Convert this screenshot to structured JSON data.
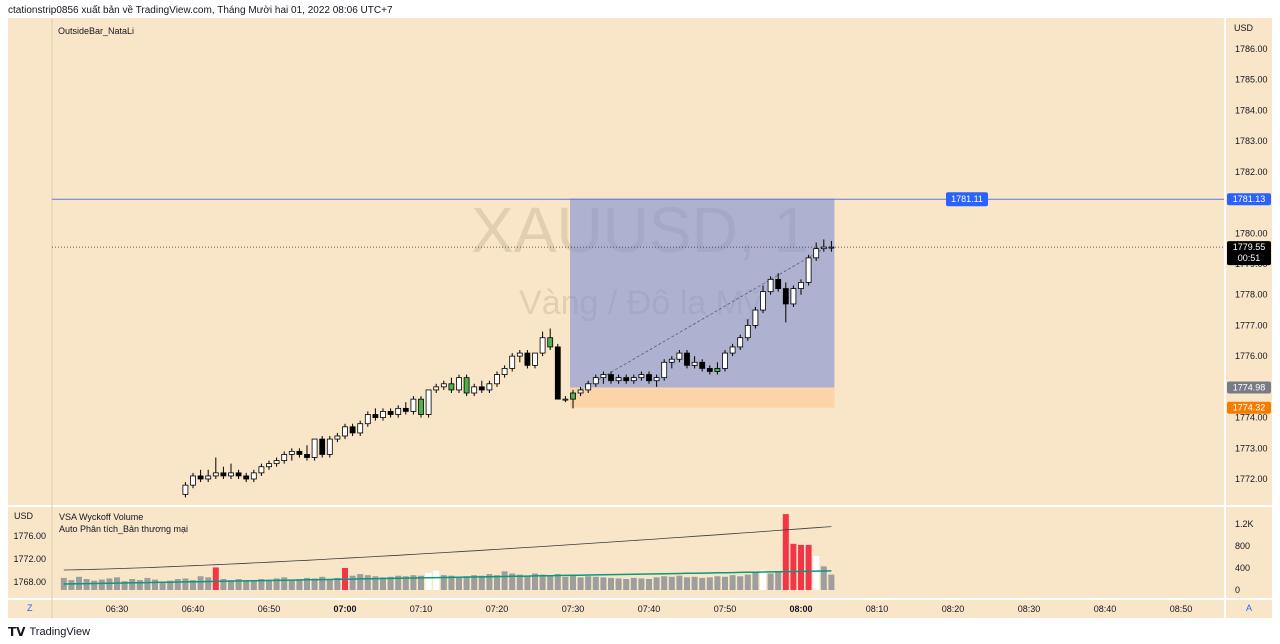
{
  "header": {
    "text": "ctationstrip0856 xuất bản về TradingView.com, Tháng Mười hai 01, 2022 08:06 UTC+7"
  },
  "main": {
    "indicator_label": "OutsideBar_NataLi",
    "currency": "USD",
    "watermark_symbol": "XAUUSD, 1",
    "watermark_desc": "Vàng / Đô la Mỹ",
    "price_ticks": [
      "1786.00",
      "1785.00",
      "1784.00",
      "1783.00",
      "1782.00",
      "1780.00",
      "1779.00",
      "1778.00",
      "1777.00",
      "1776.00",
      "1774.00",
      "1773.00",
      "1772.00"
    ],
    "badges": {
      "line_label": "1781.11",
      "axis_blue": "1781.13",
      "current_price": "1779.55",
      "countdown": "00:51",
      "axis_gray": "1774.98",
      "axis_orange": "1774.32"
    }
  },
  "volume_pane": {
    "currency": "USD",
    "title": "VSA Wyckoff Volume",
    "subtitle": "Auto Phân tích_Bản thương mại",
    "left_ticks": [
      "1776.00",
      "1772.00",
      "1768.00"
    ],
    "right_ticks": [
      "1.2K",
      "800",
      "400",
      "0"
    ]
  },
  "time_axis": {
    "labels": [
      "06:30",
      "06:40",
      "06:50",
      "07:00",
      "07:10",
      "07:20",
      "07:30",
      "07:40",
      "07:50",
      "08:00",
      "08:10",
      "08:20",
      "08:30",
      "08:40",
      "08:50"
    ],
    "bold_labels": [
      "07:00",
      "08:00"
    ],
    "left_button": "Z",
    "right_button": "A"
  },
  "footer": {
    "brand": "TradingView"
  },
  "colors": {
    "background": "#f9e6c8",
    "bull_candle": "#ffffff",
    "bear_candle": "#000000",
    "highlight_candle": "#4caf50",
    "line_blue": "#2962ff",
    "box_blue": "#7c8fd6",
    "box_orange": "#fdd3a8",
    "volume_red": "#f23645",
    "volume_gray": "#9e9e9e",
    "ma_green": "#089981"
  },
  "chart_data": {
    "type": "candlestick",
    "y_range": [
      1771.5,
      1786.4
    ],
    "time_range": [
      "06:23",
      "08:55"
    ],
    "candles": [
      {
        "t": "06:39",
        "o": 1771.5,
        "h": 1771.9,
        "l": 1771.4,
        "c": 1771.8
      },
      {
        "t": "06:40",
        "o": 1771.8,
        "h": 1772.2,
        "l": 1771.7,
        "c": 1772.1
      },
      {
        "t": "06:41",
        "o": 1772.1,
        "h": 1772.3,
        "l": 1771.9,
        "c": 1772.0
      },
      {
        "t": "06:42",
        "o": 1772.0,
        "h": 1772.3,
        "l": 1771.9,
        "c": 1772.1
      },
      {
        "t": "06:43",
        "o": 1772.1,
        "h": 1772.7,
        "l": 1772.0,
        "c": 1772.2
      },
      {
        "t": "06:44",
        "o": 1772.2,
        "h": 1772.4,
        "l": 1772.0,
        "c": 1772.1
      },
      {
        "t": "06:45",
        "o": 1772.1,
        "h": 1772.5,
        "l": 1772.0,
        "c": 1772.2
      },
      {
        "t": "06:46",
        "o": 1772.2,
        "h": 1772.3,
        "l": 1772.0,
        "c": 1772.1
      },
      {
        "t": "06:47",
        "o": 1772.1,
        "h": 1772.2,
        "l": 1771.9,
        "c": 1772.0
      },
      {
        "t": "06:48",
        "o": 1772.0,
        "h": 1772.3,
        "l": 1771.9,
        "c": 1772.2
      },
      {
        "t": "06:49",
        "o": 1772.2,
        "h": 1772.5,
        "l": 1772.1,
        "c": 1772.4
      },
      {
        "t": "06:50",
        "o": 1772.4,
        "h": 1772.6,
        "l": 1772.3,
        "c": 1772.5
      },
      {
        "t": "06:51",
        "o": 1772.5,
        "h": 1772.7,
        "l": 1772.4,
        "c": 1772.6
      },
      {
        "t": "06:52",
        "o": 1772.6,
        "h": 1772.9,
        "l": 1772.5,
        "c": 1772.8
      },
      {
        "t": "06:53",
        "o": 1772.8,
        "h": 1773.0,
        "l": 1772.6,
        "c": 1772.9
      },
      {
        "t": "06:54",
        "o": 1772.9,
        "h": 1773.0,
        "l": 1772.7,
        "c": 1772.8
      },
      {
        "t": "06:55",
        "o": 1772.8,
        "h": 1773.1,
        "l": 1772.6,
        "c": 1772.7
      },
      {
        "t": "06:56",
        "o": 1772.7,
        "h": 1773.3,
        "l": 1772.6,
        "c": 1773.3
      },
      {
        "t": "06:57",
        "o": 1773.3,
        "h": 1773.4,
        "l": 1772.7,
        "c": 1772.8
      },
      {
        "t": "06:58",
        "o": 1772.8,
        "h": 1773.4,
        "l": 1772.7,
        "c": 1773.3
      },
      {
        "t": "06:59",
        "o": 1773.3,
        "h": 1773.5,
        "l": 1773.2,
        "c": 1773.4
      },
      {
        "t": "07:00",
        "o": 1773.4,
        "h": 1773.8,
        "l": 1773.3,
        "c": 1773.7
      },
      {
        "t": "07:01",
        "o": 1773.7,
        "h": 1773.8,
        "l": 1773.4,
        "c": 1773.5
      },
      {
        "t": "07:02",
        "o": 1773.5,
        "h": 1773.9,
        "l": 1773.4,
        "c": 1773.8
      },
      {
        "t": "07:03",
        "o": 1773.8,
        "h": 1774.2,
        "l": 1773.7,
        "c": 1774.1
      },
      {
        "t": "07:04",
        "o": 1774.1,
        "h": 1774.3,
        "l": 1773.9,
        "c": 1774.0
      },
      {
        "t": "07:05",
        "o": 1774.0,
        "h": 1774.3,
        "l": 1773.9,
        "c": 1774.2
      },
      {
        "t": "07:06",
        "o": 1774.2,
        "h": 1774.3,
        "l": 1774.0,
        "c": 1774.1
      },
      {
        "t": "07:07",
        "o": 1774.1,
        "h": 1774.4,
        "l": 1774.0,
        "c": 1774.3
      },
      {
        "t": "07:08",
        "o": 1774.3,
        "h": 1774.5,
        "l": 1774.1,
        "c": 1774.2
      },
      {
        "t": "07:09",
        "o": 1774.2,
        "h": 1774.7,
        "l": 1774.1,
        "c": 1774.6
      },
      {
        "t": "07:10",
        "o": 1774.6,
        "h": 1774.7,
        "l": 1774.0,
        "c": 1774.1
      },
      {
        "t": "07:11",
        "o": 1774.1,
        "h": 1774.9,
        "l": 1774.0,
        "c": 1774.9
      },
      {
        "t": "07:12",
        "o": 1774.9,
        "h": 1775.1,
        "l": 1774.8,
        "c": 1775.0
      },
      {
        "t": "07:13",
        "o": 1775.0,
        "h": 1775.2,
        "l": 1774.9,
        "c": 1775.1
      },
      {
        "t": "07:14",
        "o": 1775.1,
        "h": 1775.3,
        "l": 1774.8,
        "c": 1774.9
      },
      {
        "t": "07:15",
        "o": 1774.9,
        "h": 1775.4,
        "l": 1774.8,
        "c": 1775.3
      },
      {
        "t": "07:16",
        "o": 1775.3,
        "h": 1775.4,
        "l": 1774.7,
        "c": 1774.8
      },
      {
        "t": "07:17",
        "o": 1774.8,
        "h": 1775.1,
        "l": 1774.7,
        "c": 1775.0
      },
      {
        "t": "07:18",
        "o": 1775.0,
        "h": 1775.2,
        "l": 1774.8,
        "c": 1774.9
      },
      {
        "t": "07:19",
        "o": 1774.9,
        "h": 1775.2,
        "l": 1774.8,
        "c": 1775.1
      },
      {
        "t": "07:20",
        "o": 1775.1,
        "h": 1775.5,
        "l": 1775.0,
        "c": 1775.4
      },
      {
        "t": "07:21",
        "o": 1775.4,
        "h": 1775.7,
        "l": 1775.3,
        "c": 1775.6
      },
      {
        "t": "07:22",
        "o": 1775.6,
        "h": 1776.1,
        "l": 1775.5,
        "c": 1776.0
      },
      {
        "t": "07:23",
        "o": 1776.0,
        "h": 1776.2,
        "l": 1775.8,
        "c": 1776.1
      },
      {
        "t": "07:24",
        "o": 1776.1,
        "h": 1776.2,
        "l": 1775.6,
        "c": 1775.7
      },
      {
        "t": "07:25",
        "o": 1775.7,
        "h": 1776.1,
        "l": 1775.6,
        "c": 1776.1
      },
      {
        "t": "07:26",
        "o": 1776.1,
        "h": 1776.8,
        "l": 1776.0,
        "c": 1776.6
      },
      {
        "t": "07:27",
        "o": 1776.6,
        "h": 1776.9,
        "l": 1776.2,
        "c": 1776.3
      },
      {
        "t": "07:28",
        "o": 1776.3,
        "h": 1776.4,
        "l": 1774.6,
        "c": 1774.6
      },
      {
        "t": "07:29",
        "o": 1774.6,
        "h": 1774.7,
        "l": 1774.5,
        "c": 1774.6
      },
      {
        "t": "07:30",
        "o": 1774.6,
        "h": 1774.9,
        "l": 1774.3,
        "c": 1774.8
      },
      {
        "t": "07:31",
        "o": 1774.8,
        "h": 1775.0,
        "l": 1774.7,
        "c": 1774.9
      },
      {
        "t": "07:32",
        "o": 1774.9,
        "h": 1775.2,
        "l": 1774.8,
        "c": 1775.1
      },
      {
        "t": "07:33",
        "o": 1775.1,
        "h": 1775.4,
        "l": 1775.0,
        "c": 1775.3
      },
      {
        "t": "07:34",
        "o": 1775.3,
        "h": 1775.5,
        "l": 1775.1,
        "c": 1775.4
      },
      {
        "t": "07:35",
        "o": 1775.4,
        "h": 1775.5,
        "l": 1775.1,
        "c": 1775.2
      },
      {
        "t": "07:36",
        "o": 1775.2,
        "h": 1775.4,
        "l": 1775.1,
        "c": 1775.3
      },
      {
        "t": "07:37",
        "o": 1775.3,
        "h": 1775.4,
        "l": 1775.1,
        "c": 1775.2
      },
      {
        "t": "07:38",
        "o": 1775.2,
        "h": 1775.4,
        "l": 1775.1,
        "c": 1775.3
      },
      {
        "t": "07:39",
        "o": 1775.3,
        "h": 1775.5,
        "l": 1775.2,
        "c": 1775.4
      },
      {
        "t": "07:40",
        "o": 1775.4,
        "h": 1775.5,
        "l": 1775.1,
        "c": 1775.2
      },
      {
        "t": "07:41",
        "o": 1775.2,
        "h": 1775.4,
        "l": 1775.0,
        "c": 1775.3
      },
      {
        "t": "07:42",
        "o": 1775.3,
        "h": 1775.9,
        "l": 1775.2,
        "c": 1775.8
      },
      {
        "t": "07:43",
        "o": 1775.8,
        "h": 1776.0,
        "l": 1775.6,
        "c": 1775.9
      },
      {
        "t": "07:44",
        "o": 1775.9,
        "h": 1776.2,
        "l": 1775.8,
        "c": 1776.1
      },
      {
        "t": "07:45",
        "o": 1776.1,
        "h": 1776.2,
        "l": 1775.6,
        "c": 1775.7
      },
      {
        "t": "07:46",
        "o": 1775.7,
        "h": 1776.0,
        "l": 1775.6,
        "c": 1775.8
      },
      {
        "t": "07:47",
        "o": 1775.8,
        "h": 1775.9,
        "l": 1775.5,
        "c": 1775.6
      },
      {
        "t": "07:48",
        "o": 1775.6,
        "h": 1775.7,
        "l": 1775.4,
        "c": 1775.5
      },
      {
        "t": "07:49",
        "o": 1775.5,
        "h": 1775.8,
        "l": 1775.4,
        "c": 1775.6
      },
      {
        "t": "07:50",
        "o": 1775.6,
        "h": 1776.2,
        "l": 1775.5,
        "c": 1776.1
      },
      {
        "t": "07:51",
        "o": 1776.1,
        "h": 1776.4,
        "l": 1776.0,
        "c": 1776.3
      },
      {
        "t": "07:52",
        "o": 1776.3,
        "h": 1776.7,
        "l": 1776.2,
        "c": 1776.6
      },
      {
        "t": "07:53",
        "o": 1776.6,
        "h": 1777.2,
        "l": 1776.5,
        "c": 1777.0
      },
      {
        "t": "07:54",
        "o": 1777.0,
        "h": 1777.6,
        "l": 1776.9,
        "c": 1777.5
      },
      {
        "t": "07:55",
        "o": 1777.5,
        "h": 1778.3,
        "l": 1777.4,
        "c": 1778.1
      },
      {
        "t": "07:56",
        "o": 1778.1,
        "h": 1778.6,
        "l": 1778.0,
        "c": 1778.5
      },
      {
        "t": "07:57",
        "o": 1778.5,
        "h": 1778.7,
        "l": 1778.1,
        "c": 1778.2
      },
      {
        "t": "07:58",
        "o": 1778.2,
        "h": 1778.4,
        "l": 1777.1,
        "c": 1777.7
      },
      {
        "t": "07:59",
        "o": 1777.7,
        "h": 1778.3,
        "l": 1777.6,
        "c": 1778.2
      },
      {
        "t": "08:00",
        "o": 1778.2,
        "h": 1778.5,
        "l": 1778.0,
        "c": 1778.4
      },
      {
        "t": "08:01",
        "o": 1778.4,
        "h": 1779.3,
        "l": 1778.3,
        "c": 1779.2
      },
      {
        "t": "08:02",
        "o": 1779.2,
        "h": 1779.7,
        "l": 1779.1,
        "c": 1779.5
      },
      {
        "t": "08:03",
        "o": 1779.5,
        "h": 1779.8,
        "l": 1779.4,
        "c": 1779.55
      },
      {
        "t": "08:04",
        "o": 1779.55,
        "h": 1779.75,
        "l": 1779.4,
        "c": 1779.55
      }
    ],
    "horizontal_line": 1781.11,
    "current_price": 1779.55,
    "box_upper": {
      "from": "07:30",
      "to": "08:04",
      "top": 1781.13,
      "bottom": 1774.98
    },
    "box_lower": {
      "from": "07:30",
      "to": "08:04",
      "top": 1774.98,
      "bottom": 1774.32
    },
    "volume_range": [
      0,
      1500
    ],
    "volume": [
      {
        "t": "06:23",
        "v": 220
      },
      {
        "t": "06:24",
        "v": 180
      },
      {
        "t": "06:25",
        "v": 240
      },
      {
        "t": "06:26",
        "v": 200
      },
      {
        "t": "06:27",
        "v": 170
      },
      {
        "t": "06:28",
        "v": 190
      },
      {
        "t": "06:29",
        "v": 210
      },
      {
        "t": "06:30",
        "v": 230
      },
      {
        "t": "06:31",
        "v": 160
      },
      {
        "t": "06:32",
        "v": 200
      },
      {
        "t": "06:33",
        "v": 180
      },
      {
        "t": "06:34",
        "v": 220
      },
      {
        "t": "06:35",
        "v": 190
      },
      {
        "t": "06:36",
        "v": 150
      },
      {
        "t": "06:37",
        "v": 170
      },
      {
        "t": "06:38",
        "v": 200
      },
      {
        "t": "06:39",
        "v": 210
      },
      {
        "t": "06:40",
        "v": 180
      },
      {
        "t": "06:41",
        "v": 250
      },
      {
        "t": "06:42",
        "v": 230
      },
      {
        "t": "06:43",
        "v": 410
      },
      {
        "t": "06:44",
        "v": 200
      },
      {
        "t": "06:45",
        "v": 180
      },
      {
        "t": "06:46",
        "v": 200
      },
      {
        "t": "06:47",
        "v": 180
      },
      {
        "t": "06:48",
        "v": 170
      },
      {
        "t": "06:49",
        "v": 200
      },
      {
        "t": "06:50",
        "v": 190
      },
      {
        "t": "06:51",
        "v": 210
      },
      {
        "t": "06:52",
        "v": 230
      },
      {
        "t": "06:53",
        "v": 190
      },
      {
        "t": "06:54",
        "v": 200
      },
      {
        "t": "06:55",
        "v": 220
      },
      {
        "t": "06:56",
        "v": 210
      },
      {
        "t": "06:57",
        "v": 240
      },
      {
        "t": "06:58",
        "v": 200
      },
      {
        "t": "06:59",
        "v": 220
      },
      {
        "t": "07:00",
        "v": 400
      },
      {
        "t": "07:01",
        "v": 260
      },
      {
        "t": "07:02",
        "v": 290
      },
      {
        "t": "07:03",
        "v": 270
      },
      {
        "t": "07:04",
        "v": 250
      },
      {
        "t": "07:05",
        "v": 230
      },
      {
        "t": "07:06",
        "v": 240
      },
      {
        "t": "07:07",
        "v": 260
      },
      {
        "t": "07:08",
        "v": 250
      },
      {
        "t": "07:09",
        "v": 270
      },
      {
        "t": "07:10",
        "v": 260
      },
      {
        "t": "07:11",
        "v": 310
      },
      {
        "t": "07:12",
        "v": 350
      },
      {
        "t": "07:13",
        "v": 270
      },
      {
        "t": "07:14",
        "v": 260
      },
      {
        "t": "07:15",
        "v": 240
      },
      {
        "t": "07:16",
        "v": 250
      },
      {
        "t": "07:17",
        "v": 270
      },
      {
        "t": "07:18",
        "v": 260
      },
      {
        "t": "07:19",
        "v": 290
      },
      {
        "t": "07:20",
        "v": 270
      },
      {
        "t": "07:21",
        "v": 340
      },
      {
        "t": "07:22",
        "v": 300
      },
      {
        "t": "07:23",
        "v": 280
      },
      {
        "t": "07:24",
        "v": 250
      },
      {
        "t": "07:25",
        "v": 300
      },
      {
        "t": "07:26",
        "v": 280
      },
      {
        "t": "07:27",
        "v": 260
      },
      {
        "t": "07:28",
        "v": 290
      },
      {
        "t": "07:29",
        "v": 240
      },
      {
        "t": "07:30",
        "v": 260
      },
      {
        "t": "07:31",
        "v": 230
      },
      {
        "t": "07:32",
        "v": 250
      },
      {
        "t": "07:33",
        "v": 240
      },
      {
        "t": "07:34",
        "v": 230
      },
      {
        "t": "07:35",
        "v": 220
      },
      {
        "t": "07:36",
        "v": 210
      },
      {
        "t": "07:37",
        "v": 200
      },
      {
        "t": "07:38",
        "v": 220
      },
      {
        "t": "07:39",
        "v": 210
      },
      {
        "t": "07:40",
        "v": 200
      },
      {
        "t": "07:41",
        "v": 230
      },
      {
        "t": "07:42",
        "v": 250
      },
      {
        "t": "07:43",
        "v": 240
      },
      {
        "t": "07:44",
        "v": 260
      },
      {
        "t": "07:45",
        "v": 230
      },
      {
        "t": "07:46",
        "v": 240
      },
      {
        "t": "07:47",
        "v": 220
      },
      {
        "t": "07:48",
        "v": 230
      },
      {
        "t": "07:49",
        "v": 250
      },
      {
        "t": "07:50",
        "v": 240
      },
      {
        "t": "07:51",
        "v": 270
      },
      {
        "t": "07:52",
        "v": 250
      },
      {
        "t": "07:53",
        "v": 280
      },
      {
        "t": "07:54",
        "v": 320
      },
      {
        "t": "07:55",
        "v": 360
      },
      {
        "t": "07:56",
        "v": 300
      },
      {
        "t": "07:57",
        "v": 330
      },
      {
        "t": "07:58",
        "v": 1380
      },
      {
        "t": "07:59",
        "v": 840
      },
      {
        "t": "08:00",
        "v": 820
      },
      {
        "t": "08:01",
        "v": 820
      },
      {
        "t": "08:02",
        "v": 620
      },
      {
        "t": "08:03",
        "v": 430
      },
      {
        "t": "08:04",
        "v": 280
      }
    ],
    "volume_colors": {
      "06:43": "red",
      "07:00": "red",
      "07:58": "red",
      "07:59": "red",
      "08:00": "red",
      "08:01": "red",
      "07:11": "white",
      "07:12": "white",
      "07:55": "white",
      "08:02": "white"
    }
  }
}
